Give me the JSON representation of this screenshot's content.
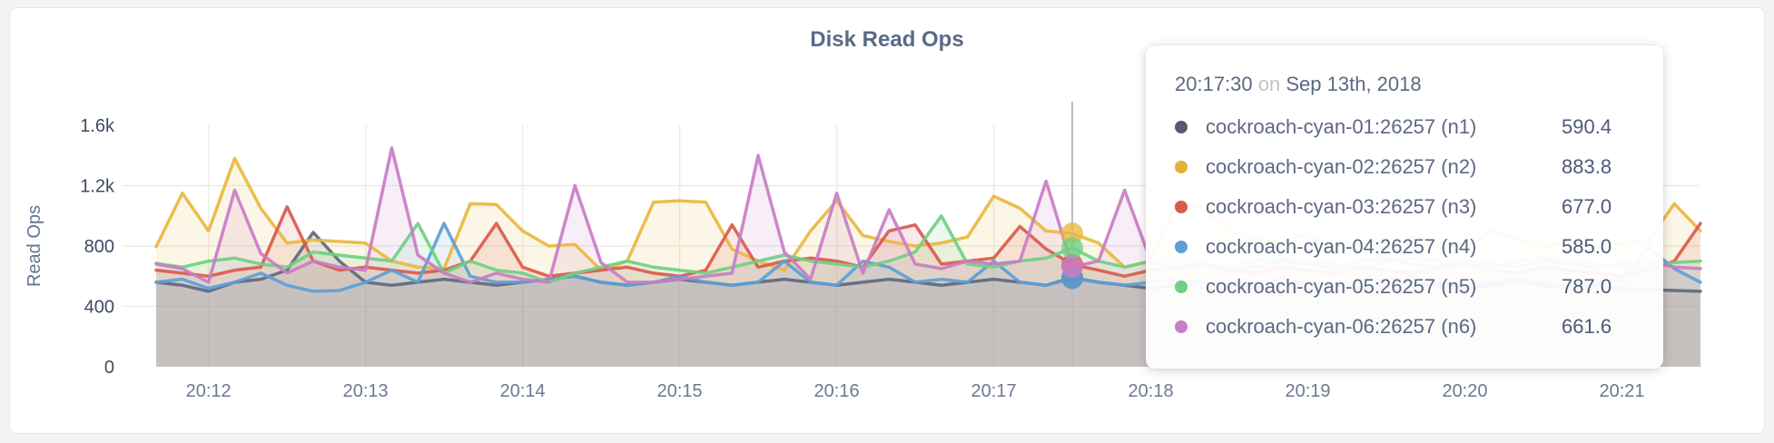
{
  "page": {
    "background": "#f4f4f2",
    "card_background": "#ffffff"
  },
  "header": {
    "title": "Disk Read Ops"
  },
  "chart_data": {
    "type": "area",
    "title": "Disk Read Ops",
    "xlabel": "",
    "ylabel": "Read Ops",
    "ylim": [
      0,
      1600
    ],
    "grid": true,
    "legend_position": "tooltip-only",
    "y_ticks": [
      {
        "value": 0,
        "label": "0"
      },
      {
        "value": 400,
        "label": "400"
      },
      {
        "value": 800,
        "label": "800"
      },
      {
        "value": 1200,
        "label": "1.2k"
      },
      {
        "value": 1600,
        "label": "1.6k"
      }
    ],
    "x_ticks": [
      {
        "index": 2,
        "label": "20:12"
      },
      {
        "index": 8,
        "label": "20:13"
      },
      {
        "index": 14,
        "label": "20:14"
      },
      {
        "index": 20,
        "label": "20:15"
      },
      {
        "index": 26,
        "label": "20:16"
      },
      {
        "index": 32,
        "label": "20:17"
      },
      {
        "index": 38,
        "label": "20:18"
      },
      {
        "index": 44,
        "label": "20:19"
      },
      {
        "index": 50,
        "label": "20:20"
      },
      {
        "index": 56,
        "label": "20:21"
      }
    ],
    "x_start_time": "20:11:40",
    "x_step_seconds": 10,
    "series": [
      {
        "name": "cockroach-cyan-01:26257 (n1)",
        "color": "#60697f",
        "values": [
          560,
          540,
          500,
          560,
          580,
          640,
          890,
          700,
          560,
          540,
          560,
          580,
          560,
          540,
          560,
          580,
          600,
          560,
          540,
          560,
          580,
          560,
          540,
          560,
          580,
          560,
          540,
          560,
          580,
          560,
          540,
          560,
          580,
          560,
          540,
          590.4,
          560,
          540,
          520,
          540,
          560,
          540,
          520,
          540,
          560,
          540,
          520,
          540,
          560,
          540,
          520,
          540,
          560,
          540,
          520,
          540,
          520,
          510,
          505,
          500
        ]
      },
      {
        "name": "cockroach-cyan-02:26257 (n2)",
        "color": "#e9b73e",
        "values": [
          795,
          1150,
          900,
          1380,
          1050,
          820,
          840,
          830,
          820,
          700,
          660,
          650,
          1080,
          1075,
          900,
          800,
          810,
          640,
          700,
          1090,
          1100,
          1090,
          780,
          700,
          640,
          900,
          1100,
          870,
          830,
          800,
          820,
          860,
          1130,
          1050,
          900,
          883.8,
          820,
          660,
          700,
          1100,
          1050,
          900,
          850,
          820,
          880,
          760,
          820,
          780,
          860,
          820,
          780,
          900,
          850,
          800,
          830,
          790,
          820,
          830,
          1080,
          900
        ]
      },
      {
        "name": "cockroach-cyan-03:26257 (n3)",
        "color": "#da5a4e",
        "values": [
          640,
          620,
          600,
          640,
          660,
          1060,
          700,
          640,
          660,
          640,
          620,
          640,
          700,
          950,
          660,
          600,
          620,
          640,
          660,
          620,
          600,
          640,
          940,
          660,
          700,
          720,
          700,
          660,
          900,
          940,
          680,
          700,
          720,
          930,
          780,
          677,
          640,
          600,
          640,
          660,
          680,
          640,
          620,
          660,
          640,
          620,
          660,
          640,
          620,
          660,
          680,
          640,
          620,
          660,
          640,
          620,
          600,
          640,
          700,
          950
        ]
      },
      {
        "name": "cockroach-cyan-04:26257 (n4)",
        "color": "#5c9fd6",
        "values": [
          560,
          580,
          520,
          560,
          620,
          540,
          500,
          505,
          560,
          640,
          560,
          950,
          600,
          560,
          560,
          580,
          600,
          560,
          540,
          560,
          600,
          560,
          540,
          560,
          700,
          560,
          540,
          700,
          660,
          560,
          580,
          560,
          700,
          560,
          540,
          585,
          560,
          540,
          560,
          580,
          560,
          540,
          560,
          580,
          560,
          540,
          560,
          580,
          600,
          560,
          540,
          560,
          580,
          560,
          540,
          560,
          580,
          790,
          650,
          560
        ]
      },
      {
        "name": "cockroach-cyan-05:26257 (n5)",
        "color": "#6fd083",
        "values": [
          685,
          660,
          700,
          720,
          680,
          660,
          760,
          740,
          720,
          700,
          950,
          620,
          700,
          640,
          620,
          560,
          620,
          660,
          700,
          660,
          640,
          620,
          660,
          700,
          740,
          700,
          680,
          660,
          700,
          760,
          1000,
          680,
          660,
          700,
          720,
          787,
          700,
          660,
          700,
          720,
          680,
          660,
          700,
          720,
          700,
          680,
          660,
          700,
          720,
          700,
          680,
          660,
          700,
          720,
          700,
          680,
          650,
          660,
          690,
          700
        ]
      },
      {
        "name": "cockroach-cyan-06:26257 (n6)",
        "color": "#c97dc6",
        "values": [
          680,
          650,
          560,
          1170,
          750,
          620,
          700,
          660,
          640,
          1450,
          740,
          620,
          560,
          620,
          580,
          560,
          1200,
          690,
          560,
          560,
          580,
          600,
          620,
          1400,
          760,
          580,
          1150,
          620,
          1040,
          680,
          650,
          700,
          680,
          700,
          1230,
          661.6,
          700,
          1170,
          700,
          650,
          680,
          640,
          660,
          700,
          680,
          650,
          700,
          720,
          680,
          650,
          700,
          680,
          660,
          700,
          680,
          650,
          680,
          700,
          660,
          650
        ]
      }
    ],
    "hover": {
      "index": 35,
      "time": "20:17:30"
    }
  },
  "tooltip": {
    "time": "20:17:30",
    "on_word": "on",
    "date": "Sep 13th, 2018",
    "rows": [
      {
        "label": "cockroach-cyan-01:26257 (n1)",
        "value": "590.4",
        "color": "#535b72"
      },
      {
        "label": "cockroach-cyan-02:26257 (n2)",
        "value": "883.8",
        "color": "#e3b338"
      },
      {
        "label": "cockroach-cyan-03:26257 (n3)",
        "value": "677.0",
        "color": "#da5a4e"
      },
      {
        "label": "cockroach-cyan-04:26257 (n4)",
        "value": "585.0",
        "color": "#5c9fd6"
      },
      {
        "label": "cockroach-cyan-05:26257 (n5)",
        "value": "787.0",
        "color": "#6fd083"
      },
      {
        "label": "cockroach-cyan-06:26257 (n6)",
        "value": "661.6",
        "color": "#c97dc6"
      }
    ]
  },
  "colors": {
    "grid": "#ececea",
    "hover_line": "#b9bcbe",
    "title_text": "#5a6a87",
    "axis_text": "#6d7891",
    "y_tick_text": "#3f4a63"
  }
}
